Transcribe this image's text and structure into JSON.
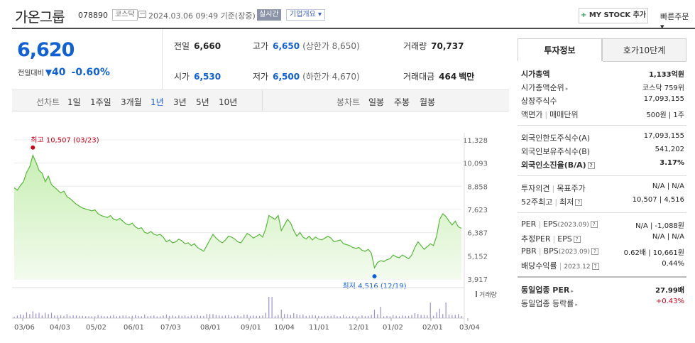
{
  "header": {
    "name": "가온그룹",
    "code": "078890",
    "market": "코스닥",
    "datetime": "2024.03.06 09:49 기준(장중)",
    "live": "실시간",
    "overview": "기업개요",
    "mystock_plus": "+",
    "mystock": "MY STOCK 추가",
    "quick": "빠른주문"
  },
  "quote": {
    "price": "6,620",
    "change_label": "전일대비",
    "change_arrow": "▼",
    "change_value": "40",
    "change_pct": "-0.60%",
    "prev_close_label": "전일",
    "prev_close": "6,660",
    "high_label": "고가",
    "high": "6,650",
    "upper_limit": "(상한가 8,650)",
    "volume_label": "거래량",
    "volume": "70,737",
    "open_label": "시가",
    "open": "6,530",
    "low_label": "저가",
    "low": "6,500",
    "lower_limit": "(하한가 4,670)",
    "amount_label": "거래대금",
    "amount": "464",
    "amount_unit": "백만"
  },
  "periods": {
    "label": "선차트",
    "items": [
      "1일",
      "1주일",
      "3개월",
      "1년",
      "3년",
      "5년",
      "10년"
    ],
    "selected": "1년",
    "candle_label": "봉차트",
    "candle_items": [
      "일봉",
      "주봉",
      "월봉"
    ]
  },
  "chart_data": {
    "type": "line",
    "y_ticks": [
      "11,328",
      "10,093",
      "8,858",
      "7,623",
      "6,387",
      "5,152",
      "3,917"
    ],
    "ylim": [
      3917,
      11328
    ],
    "x_ticks": [
      "03/06",
      "04/03",
      "05/02",
      "06/01",
      "07/03",
      "08/01",
      "09/01",
      "10/04",
      "11/01",
      "12/01",
      "01/02",
      "02/01",
      "03/04"
    ],
    "high_label": "최고 10,507 (03/23)",
    "low_label": "최저 4,516 (12/19)",
    "volume_label": "거래량",
    "series": [
      {
        "values": [
          8780,
          8650,
          8900,
          9100,
          9600,
          9900,
          10507,
          10150,
          9700,
          9550,
          9100,
          9400,
          8950,
          8800,
          8650,
          8500,
          8600,
          8300,
          8200,
          8050,
          7900,
          7800,
          7700,
          7650,
          7600,
          7550,
          7600,
          7400,
          7300,
          7250,
          7200,
          7300,
          7100,
          7050,
          7150,
          7000,
          6850,
          6800,
          6900,
          6700,
          6600,
          6650,
          6400,
          6350,
          6450,
          6300,
          6250,
          6300,
          6150,
          5900,
          6000,
          5850,
          5900,
          6050,
          5950,
          5800,
          5850,
          5700,
          5800,
          5600,
          5500,
          5400,
          5700,
          6000,
          6300,
          6100,
          5950,
          5850,
          6000,
          6200,
          6150,
          6050,
          5900,
          5850,
          6100,
          6350,
          6250,
          6100,
          6200,
          6300,
          6150,
          6600,
          7300,
          7200,
          7100,
          7300,
          6500,
          6800,
          7100,
          6900,
          6500,
          6200,
          6400,
          6150,
          6050,
          6200,
          6000,
          6150,
          6050,
          6000,
          6100,
          6200,
          6100,
          5900,
          5950,
          6000,
          5800,
          5750,
          5700,
          5600,
          5550,
          5600,
          5450,
          5400,
          5500,
          5300,
          4516,
          4800,
          4900,
          4850,
          4950,
          5000,
          5200,
          5100,
          5050,
          5200,
          5100,
          5000,
          5200,
          5600,
          5900,
          5700,
          5500,
          5650,
          5800,
          5700,
          6200,
          7100,
          7400,
          7250,
          7000,
          6800,
          7000,
          6700,
          6620
        ]
      }
    ]
  },
  "info": {
    "tab_active": "투자정보",
    "tab_other": "호가10단계",
    "market_cap_label": "시가총액",
    "market_cap": "1,133억원",
    "cap_rank_label": "시가총액순위",
    "cap_rank": "코스닥 759위",
    "shares_label": "상장주식수",
    "shares": "17,093,155",
    "par_label": "액면가",
    "unit_label": "매매단위",
    "par_unit": "500원 | 1주",
    "foreign_limit_label": "외국인한도주식수(A)",
    "foreign_limit": "17,093,155",
    "foreign_hold_label": "외국인보유주식수(B)",
    "foreign_hold": "541,202",
    "foreign_ratio_label": "외국인소진율(B/A)",
    "foreign_ratio": "3.17%",
    "opinion_label": "투자의견",
    "target_label": "목표주가",
    "opinion_target": "N/A | N/A",
    "w52_label": "52주최고",
    "w52_low_label": "최저",
    "w52": "10,507 | 4,516",
    "per_label": "PER",
    "eps_label": "EPS",
    "eps_period": "(2023.09)",
    "per_eps": "N/A | -1,088원",
    "est_per_label": "추정PER",
    "est_eps_label": "EPS",
    "est_per_eps": "N/A | N/A",
    "pbr_label": "PBR",
    "bps_label": "BPS",
    "bps_period": "(2023.09)",
    "pbr_bps": "0.62배 | 10,661원",
    "div_label": "배당수익률",
    "div_period": "2023.12",
    "div": "0.44%",
    "peer_per_label": "동일업종 PER",
    "peer_per": "27.99배",
    "peer_rate_label": "동일업종 등락률",
    "peer_rate": "+0.43%"
  }
}
